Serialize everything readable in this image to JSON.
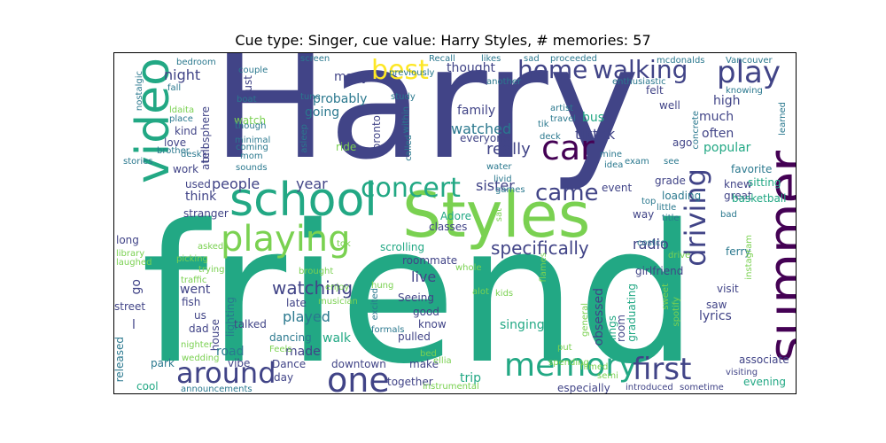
{
  "title": "Cue type: Singer, cue value: Harry Styles, # memories: 57",
  "colors": {
    "dark_purple": "#440154",
    "indigo": "#414487",
    "blue": "#2a788e",
    "teal": "#22a884",
    "green": "#7ad151",
    "yellow": "#fde725",
    "lime": "#bddf26"
  },
  "words": [
    "Harry",
    "friend",
    "Styles",
    "school",
    "summer",
    "video",
    "car",
    "playing",
    "memory",
    "first",
    "around",
    "one",
    "concert",
    "play",
    "walking",
    "home",
    "driving",
    "best",
    "came",
    "specifically",
    "watching",
    "people",
    "year",
    "really",
    "night",
    "sister",
    "tiktok",
    "watched",
    "thought",
    "family",
    "bus",
    "probably",
    "going",
    "much",
    "high",
    "often",
    "popular",
    "think",
    "used",
    "work",
    "stranger",
    "radio",
    "knew",
    "great",
    "grade",
    "event",
    "way",
    "girlfriend",
    "live",
    "roommate",
    "scrolling",
    "classes",
    "Adore",
    "toronto",
    "everyone",
    "ride",
    "watch",
    "love",
    "kind",
    "atmosphere",
    "tell",
    "long",
    "went",
    "fish",
    "us",
    "dad",
    "house",
    "lighting",
    "street",
    "released",
    "park",
    "road",
    "vibe",
    "cool",
    "talked",
    "Dance",
    "made",
    "walk",
    "dancing",
    "played",
    "late",
    "Seeing",
    "good",
    "know",
    "pulled",
    "singing",
    "obsessed",
    "things",
    "trip",
    "make",
    "together",
    "downtown",
    "day",
    "associate",
    "evening",
    "lyrics",
    "saw",
    "visit",
    "room",
    "graduating",
    "well",
    "felt",
    "ago",
    "sitting",
    "favorite",
    "loading",
    "basketball",
    "many",
    "must",
    "couple",
    "boat",
    "bedroom",
    "fall",
    "place",
    "ldaita",
    "brother",
    "stories",
    "nostalgic",
    "desk",
    "minimal",
    "mom",
    "sounds",
    "coming",
    "though",
    "asleep",
    "called",
    "within",
    "study",
    "tune",
    "screen",
    "previously",
    "Recall",
    "likes",
    "sad",
    "proceeded",
    "another",
    "enthusiastic",
    "artist",
    "travel",
    "tik",
    "deck",
    "water",
    "livid",
    "games",
    "mine",
    "idea",
    "exam",
    "see",
    "concrete",
    "Vancouver",
    "mcdonalds",
    "knowing",
    "learned",
    "little",
    "title",
    "bad",
    "top",
    "costco",
    "ferry",
    "drive",
    "instagram",
    "sweet",
    "spotify",
    "general",
    "put",
    "filmed",
    "especially",
    "introduced",
    "sometime",
    "visiting",
    "semi",
    "spending",
    "bed",
    "ellia",
    "instrumental",
    "formals",
    "excited",
    "alot",
    "kids",
    "whole",
    "hung",
    "musician",
    "enjoy",
    "brought",
    "tok",
    "asked",
    "picking",
    "laughed",
    "library",
    "trying",
    "traffic",
    "nighter",
    "wedding",
    "Feels",
    "announcements",
    "sat",
    "flames",
    "l",
    "go"
  ]
}
